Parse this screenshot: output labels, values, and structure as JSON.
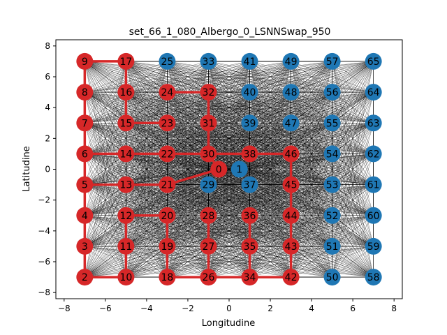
{
  "chart_data": {
    "type": "scatter",
    "title": "set_66_1_080_Albergo_0_LSNNSwap_950",
    "xlabel": "Longitudine",
    "ylabel": "Latitudine",
    "xlim": [
      -8.4,
      8.4
    ],
    "ylim": [
      -8.4,
      8.4
    ],
    "xticks": [
      -8,
      -6,
      -4,
      -2,
      0,
      2,
      4,
      6,
      8
    ],
    "yticks": [
      -8,
      -6,
      -4,
      -2,
      0,
      2,
      4,
      6,
      8
    ],
    "colors": {
      "red": "#d62728",
      "blue": "#1f77b4",
      "edge": "#000000"
    },
    "nodes": [
      {
        "id": "0",
        "x": -0.5,
        "y": 0,
        "color": "red"
      },
      {
        "id": "1",
        "x": 0.5,
        "y": 0,
        "color": "blue"
      },
      {
        "id": "2",
        "x": -7,
        "y": -7,
        "color": "red"
      },
      {
        "id": "3",
        "x": -7,
        "y": -5,
        "color": "red"
      },
      {
        "id": "4",
        "x": -7,
        "y": -3,
        "color": "red"
      },
      {
        "id": "5",
        "x": -7,
        "y": -1,
        "color": "red"
      },
      {
        "id": "6",
        "x": -7,
        "y": 1,
        "color": "red"
      },
      {
        "id": "7",
        "x": -7,
        "y": 3,
        "color": "red"
      },
      {
        "id": "8",
        "x": -7,
        "y": 5,
        "color": "red"
      },
      {
        "id": "9",
        "x": -7,
        "y": 7,
        "color": "red"
      },
      {
        "id": "10",
        "x": -5,
        "y": -7,
        "color": "red"
      },
      {
        "id": "11",
        "x": -5,
        "y": -5,
        "color": "red"
      },
      {
        "id": "12",
        "x": -5,
        "y": -3,
        "color": "red"
      },
      {
        "id": "13",
        "x": -5,
        "y": -1,
        "color": "red"
      },
      {
        "id": "14",
        "x": -5,
        "y": 1,
        "color": "red"
      },
      {
        "id": "15",
        "x": -5,
        "y": 3,
        "color": "red"
      },
      {
        "id": "16",
        "x": -5,
        "y": 5,
        "color": "red"
      },
      {
        "id": "17",
        "x": -5,
        "y": 7,
        "color": "red"
      },
      {
        "id": "18",
        "x": -3,
        "y": -7,
        "color": "red"
      },
      {
        "id": "19",
        "x": -3,
        "y": -5,
        "color": "red"
      },
      {
        "id": "20",
        "x": -3,
        "y": -3,
        "color": "red"
      },
      {
        "id": "21",
        "x": -3,
        "y": -1,
        "color": "red"
      },
      {
        "id": "22",
        "x": -3,
        "y": 1,
        "color": "red"
      },
      {
        "id": "23",
        "x": -3,
        "y": 3,
        "color": "red"
      },
      {
        "id": "24",
        "x": -3,
        "y": 5,
        "color": "red"
      },
      {
        "id": "25",
        "x": -3,
        "y": 7,
        "color": "blue"
      },
      {
        "id": "26",
        "x": -1,
        "y": -7,
        "color": "red"
      },
      {
        "id": "27",
        "x": -1,
        "y": -5,
        "color": "red"
      },
      {
        "id": "28",
        "x": -1,
        "y": -3,
        "color": "red"
      },
      {
        "id": "29",
        "x": -1,
        "y": -1,
        "color": "blue"
      },
      {
        "id": "30",
        "x": -1,
        "y": 1,
        "color": "red"
      },
      {
        "id": "31",
        "x": -1,
        "y": 3,
        "color": "red"
      },
      {
        "id": "32",
        "x": -1,
        "y": 5,
        "color": "red"
      },
      {
        "id": "33",
        "x": -1,
        "y": 7,
        "color": "blue"
      },
      {
        "id": "34",
        "x": 1,
        "y": -7,
        "color": "red"
      },
      {
        "id": "35",
        "x": 1,
        "y": -5,
        "color": "red"
      },
      {
        "id": "36",
        "x": 1,
        "y": -3,
        "color": "red"
      },
      {
        "id": "37",
        "x": 1,
        "y": -1,
        "color": "blue"
      },
      {
        "id": "38",
        "x": 1,
        "y": 1,
        "color": "red"
      },
      {
        "id": "39",
        "x": 1,
        "y": 3,
        "color": "blue"
      },
      {
        "id": "40",
        "x": 1,
        "y": 5,
        "color": "blue"
      },
      {
        "id": "41",
        "x": 1,
        "y": 7,
        "color": "blue"
      },
      {
        "id": "42",
        "x": 3,
        "y": -7,
        "color": "red"
      },
      {
        "id": "43",
        "x": 3,
        "y": -5,
        "color": "red"
      },
      {
        "id": "44",
        "x": 3,
        "y": -3,
        "color": "red"
      },
      {
        "id": "45",
        "x": 3,
        "y": -1,
        "color": "red"
      },
      {
        "id": "46",
        "x": 3,
        "y": 1,
        "color": "red"
      },
      {
        "id": "47",
        "x": 3,
        "y": 3,
        "color": "blue"
      },
      {
        "id": "48",
        "x": 3,
        "y": 5,
        "color": "blue"
      },
      {
        "id": "49",
        "x": 3,
        "y": 7,
        "color": "blue"
      },
      {
        "id": "50",
        "x": 5,
        "y": -7,
        "color": "blue"
      },
      {
        "id": "51",
        "x": 5,
        "y": -5,
        "color": "blue"
      },
      {
        "id": "52",
        "x": 5,
        "y": -3,
        "color": "blue"
      },
      {
        "id": "53",
        "x": 5,
        "y": -1,
        "color": "blue"
      },
      {
        "id": "54",
        "x": 5,
        "y": 1,
        "color": "blue"
      },
      {
        "id": "55",
        "x": 5,
        "y": 3,
        "color": "blue"
      },
      {
        "id": "56",
        "x": 5,
        "y": 5,
        "color": "blue"
      },
      {
        "id": "57",
        "x": 5,
        "y": 7,
        "color": "blue"
      },
      {
        "id": "58",
        "x": 7,
        "y": -7,
        "color": "blue"
      },
      {
        "id": "59",
        "x": 7,
        "y": -5,
        "color": "blue"
      },
      {
        "id": "60",
        "x": 7,
        "y": -3,
        "color": "blue"
      },
      {
        "id": "61",
        "x": 7,
        "y": -1,
        "color": "blue"
      },
      {
        "id": "62",
        "x": 7,
        "y": 1,
        "color": "blue"
      },
      {
        "id": "63",
        "x": 7,
        "y": 3,
        "color": "blue"
      },
      {
        "id": "64",
        "x": 7,
        "y": 5,
        "color": "blue"
      },
      {
        "id": "65",
        "x": 7,
        "y": 7,
        "color": "blue"
      }
    ],
    "route_edges": [
      [
        "9",
        "17"
      ],
      [
        "17",
        "16"
      ],
      [
        "16",
        "15"
      ],
      [
        "15",
        "23"
      ],
      [
        "9",
        "8"
      ],
      [
        "8",
        "7"
      ],
      [
        "7",
        "6"
      ],
      [
        "6",
        "5"
      ],
      [
        "5",
        "4"
      ],
      [
        "4",
        "3"
      ],
      [
        "3",
        "2"
      ],
      [
        "2",
        "10"
      ],
      [
        "10",
        "11"
      ],
      [
        "11",
        "12"
      ],
      [
        "12",
        "20"
      ],
      [
        "20",
        "19"
      ],
      [
        "19",
        "18"
      ],
      [
        "18",
        "26"
      ],
      [
        "26",
        "27"
      ],
      [
        "27",
        "28"
      ],
      [
        "26",
        "34"
      ],
      [
        "34",
        "35"
      ],
      [
        "35",
        "36"
      ],
      [
        "34",
        "42"
      ],
      [
        "42",
        "43"
      ],
      [
        "43",
        "44"
      ],
      [
        "44",
        "45"
      ],
      [
        "45",
        "46"
      ],
      [
        "46",
        "38"
      ],
      [
        "38",
        "30"
      ],
      [
        "30",
        "22"
      ],
      [
        "22",
        "14"
      ],
      [
        "14",
        "6"
      ],
      [
        "5",
        "13"
      ],
      [
        "13",
        "21"
      ],
      [
        "21",
        "0"
      ],
      [
        "0",
        "30"
      ],
      [
        "30",
        "31"
      ],
      [
        "31",
        "32"
      ],
      [
        "32",
        "24"
      ]
    ]
  }
}
